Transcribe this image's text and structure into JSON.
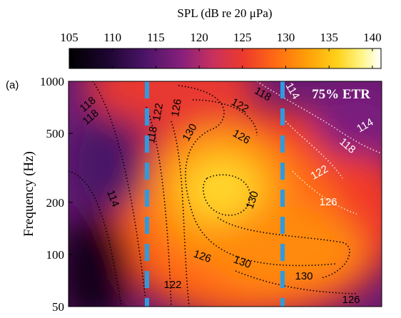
{
  "chart_data": {
    "type": "heatmap",
    "panel_label": "(a)",
    "colorbar": {
      "title": "SPL (dB re 20 μPa)",
      "range": [
        105,
        141
      ],
      "ticks": [
        105,
        110,
        115,
        120,
        125,
        130,
        135,
        140
      ],
      "colormap": "hot"
    },
    "ylabel": "Frequency (Hz)",
    "yscale": "log",
    "ylim": [
      50,
      1000
    ],
    "yticks": [
      50,
      100,
      200,
      500,
      1000
    ],
    "annotation": "75% ETR",
    "contour_levels": [
      114,
      118,
      122,
      126,
      130
    ],
    "contour_labels": [
      {
        "text": "118",
        "color": "#000000"
      },
      {
        "text": "118",
        "color": "#000000"
      },
      {
        "text": "118",
        "color": "#000000"
      },
      {
        "text": "122",
        "color": "#000000"
      },
      {
        "text": "126",
        "color": "#000000"
      },
      {
        "text": "130",
        "color": "#000000"
      },
      {
        "text": "122",
        "color": "#000000"
      },
      {
        "text": "126",
        "color": "#000000"
      },
      {
        "text": "118",
        "color": "#000000"
      },
      {
        "text": "114",
        "color": "#ffffff"
      },
      {
        "text": "114",
        "color": "#ffffff"
      },
      {
        "text": "118",
        "color": "#ffffff"
      },
      {
        "text": "122",
        "color": "#ffffff"
      },
      {
        "text": "126",
        "color": "#ffffff"
      },
      {
        "text": "130",
        "color": "#000000"
      },
      {
        "text": "114",
        "color": "#000000"
      },
      {
        "text": "126",
        "color": "#000000"
      },
      {
        "text": "130",
        "color": "#000000"
      },
      {
        "text": "130",
        "color": "#000000"
      },
      {
        "text": "122",
        "color": "#000000"
      },
      {
        "text": "126",
        "color": "#000000"
      }
    ],
    "reference_lines_color": "#2e9be0"
  }
}
